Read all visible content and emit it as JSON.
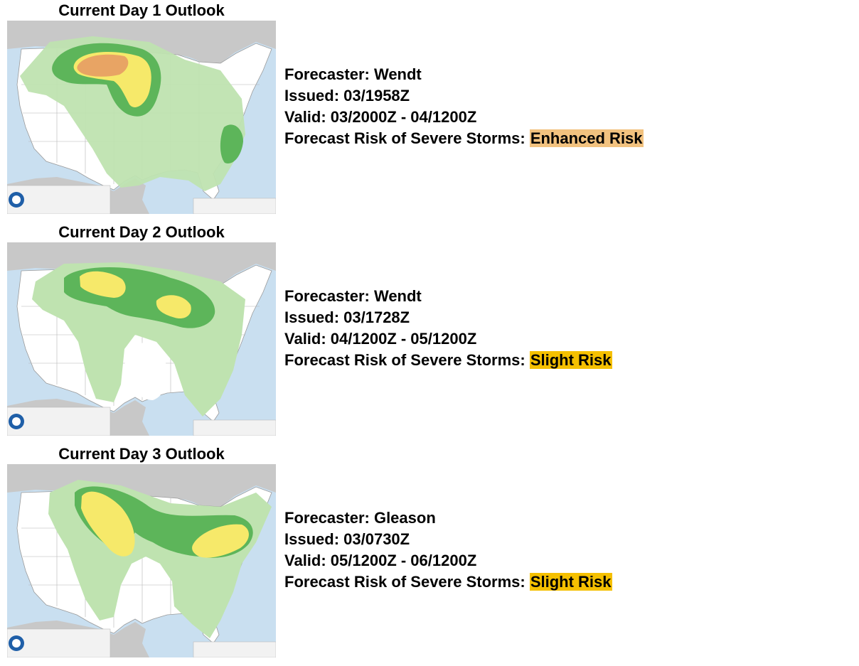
{
  "outlooks": [
    {
      "title": "Current Day 1 Outlook",
      "forecaster_label": "Forecaster: ",
      "forecaster": "Wendt",
      "issued_label": "Issued: ",
      "issued": "03/1958Z",
      "valid_label": "Valid: ",
      "valid": "03/2000Z - 04/1200Z",
      "risk_label": "Forecast Risk of Severe Storms: ",
      "risk": "Enhanced Risk",
      "risk_color": "#f2c27f",
      "map_alt": "Day 1 outlook map"
    },
    {
      "title": "Current Day 2 Outlook",
      "forecaster_label": "Forecaster: ",
      "forecaster": "Wendt",
      "issued_label": "Issued: ",
      "issued": "03/1728Z",
      "valid_label": "Valid: ",
      "valid": "04/1200Z - 05/1200Z",
      "risk_label": "Forecast Risk of Severe Storms: ",
      "risk": "Slight Risk",
      "risk_color": "#f5c000",
      "map_alt": "Day 2 outlook map"
    },
    {
      "title": "Current Day 3 Outlook",
      "forecaster_label": "Forecaster: ",
      "forecaster": "Gleason",
      "issued_label": "Issued: ",
      "issued": "03/0730Z",
      "valid_label": "Valid: ",
      "valid": "05/1200Z - 06/1200Z",
      "risk_label": "Forecast Risk of Severe Storms: ",
      "risk": "Slight Risk",
      "risk_color": "#f5c000",
      "map_alt": "Day 3 outlook map"
    }
  ],
  "colors": {
    "ocean": "#c9dff0",
    "land_foreign": "#c8c8c8",
    "land_us": "#ffffff",
    "tstm": "#bfe3b0",
    "marginal": "#5db55a",
    "slight": "#f6e96a",
    "enhanced": "#e8a464",
    "borders": "#9a9a9a"
  }
}
